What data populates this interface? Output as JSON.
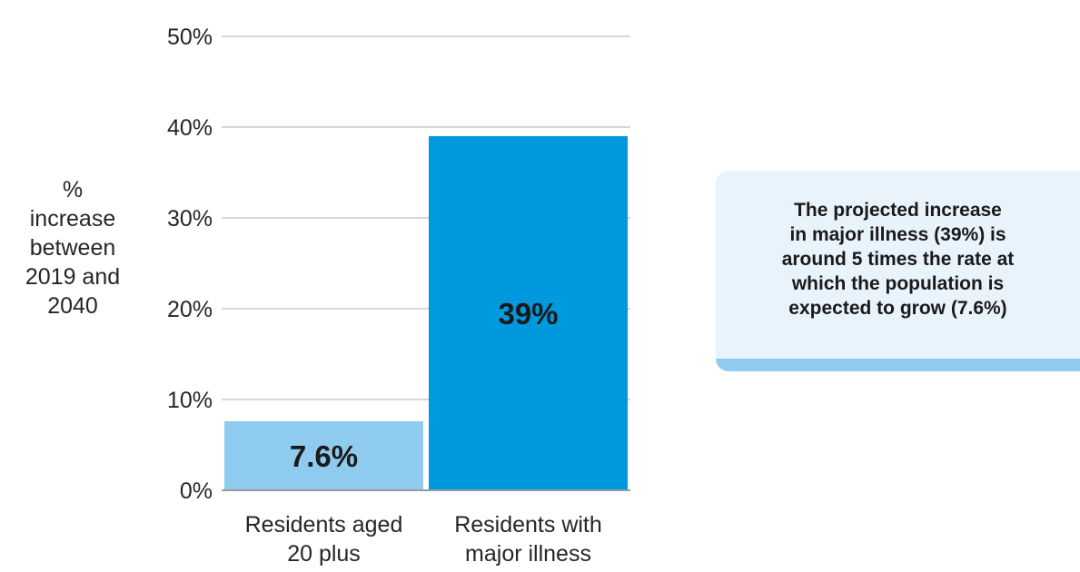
{
  "chart_data": {
    "type": "bar",
    "categories": [
      [
        "Residents aged",
        "20 plus"
      ],
      [
        "Residents with",
        "major illness"
      ]
    ],
    "values": [
      7.6,
      39
    ],
    "data_labels": [
      "7.6%",
      "39%"
    ],
    "bar_colors": [
      "#8fcbef",
      "#0099de"
    ],
    "yticks": [
      "0%",
      "10%",
      "20%",
      "30%",
      "40%",
      "50%"
    ],
    "ytick_values": [
      0,
      10,
      20,
      30,
      40,
      50
    ],
    "ylim": [
      0,
      50
    ],
    "ylabel_lines": [
      "%",
      "increase",
      "between",
      "2019 and",
      "2040"
    ],
    "grid": true,
    "gridline_color": "#c8c8c8"
  },
  "callout": {
    "lines": [
      "The projected increase",
      "in major illness (39%) is",
      "around 5 times the rate at",
      "which the population is",
      "expected to grow (7.6%)"
    ]
  }
}
